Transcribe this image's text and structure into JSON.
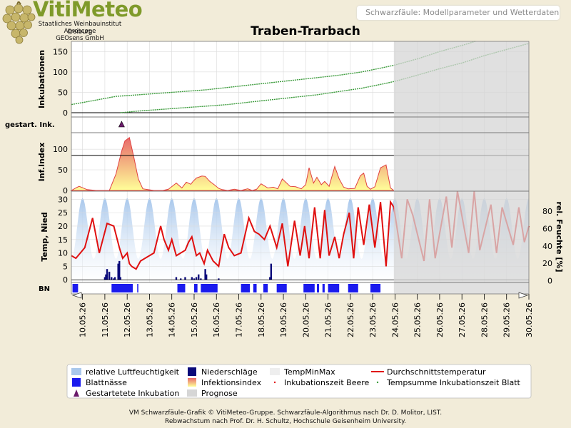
{
  "header": {
    "logo_text": "VitiMeteo",
    "logo_sub": [
      "Staatliches Weinbauinstitut Freiburg",
      "Agroscope",
      "GEOsens GmbH"
    ],
    "page_label": "Schwarzfäule: Modellparameter und Wetterdaten"
  },
  "footer": {
    "line1": "VM Schwarzfäule-Grafik © VitiMeteo-Gruppe. Schwarzfäule-Algorithmus nach Dr. D. Molitor, LIST.",
    "line2": "Rebwachstum nach Prof. Dr. H. Schultz, Hochschule Geisenheim University."
  },
  "colors": {
    "background": "#f2ecd9",
    "incubation_line": "#3a9a3a",
    "temperature": "#e01010",
    "humidity": "#a9c8ec",
    "precipitation": "#0a0a7a",
    "leaf_wetness": "#1a1aee",
    "forecast": "#d6d6d6",
    "infection_top": "#e86a6a",
    "infection_bottom": "#ffff99",
    "start_marker": "#6a1a6a"
  },
  "chart_data": {
    "type": "line",
    "title": "Traben-Trarbach",
    "x_labels": [
      "10.05.26",
      "11.05.26",
      "12.05.26",
      "13.05.26",
      "14.05.26",
      "15.05.26",
      "16.05.26",
      "17.05.26",
      "18.05.26",
      "19.05.26",
      "20.05.26",
      "21.05.26",
      "22.05.26",
      "23.05.26",
      "24.05.26",
      "25.05.26",
      "26.05.26",
      "27.05.26",
      "28.05.26",
      "29.05.26",
      "30.05.26"
    ],
    "x_range": [
      9.5,
      30.0
    ],
    "forecast_start": 23.95,
    "panels": {
      "incubation": {
        "ylabel": "Inkubationen",
        "ylim": [
          0,
          175
        ],
        "yticks": [
          0,
          50,
          100,
          150
        ],
        "threshold": 0,
        "series": [
          {
            "name": "Inkubationszeit Beere",
            "x": [
              9.5,
              10.5,
              11.5,
              12.5,
              13.5,
              14.5,
              15.5,
              16.5,
              17.5,
              18.5,
              19.5,
              20.5,
              21.5,
              22.5,
              23.5,
              24.0,
              25.0,
              26.0,
              27.0,
              27.6
            ],
            "y": [
              20,
              30,
              40,
              44,
              48,
              52,
              56,
              62,
              68,
              74,
              80,
              86,
              92,
              100,
              111,
              117,
              132,
              150,
              165,
              175
            ]
          },
          {
            "name": "Tempsumme Inkubationszeit Blatt",
            "x": [
              11.7,
              12.5,
              13.5,
              14.5,
              15.5,
              16.5,
              17.5,
              18.5,
              19.5,
              20.5,
              21.5,
              22.5,
              23.5,
              24.0,
              25.0,
              26.0,
              27.0,
              28.0,
              29.0,
              30.0
            ],
            "y": [
              0,
              4,
              8,
              12,
              16,
              20,
              26,
              32,
              38,
              44,
              52,
              60,
              71,
              77,
              92,
              108,
              122,
              140,
              155,
              170
            ]
          }
        ]
      },
      "gestart": {
        "ylabel": "gestart. Ink.",
        "series": [
          {
            "name": "Gestartetete Inkubation",
            "x": [
              11.75
            ]
          }
        ]
      },
      "infection": {
        "ylabel": "Inf.Index",
        "ylim": [
          0,
          140
        ],
        "yticks": [
          0,
          50,
          100
        ],
        "threshold": 85,
        "series": [
          {
            "name": "Infektionsindex",
            "x": [
              9.5,
              9.7,
              9.85,
              10.2,
              10.6,
              11.2,
              11.5,
              11.75,
              11.9,
              12.1,
              12.3,
              12.5,
              12.7,
              13.2,
              13.6,
              13.85,
              14.2,
              14.45,
              14.65,
              14.85,
              14.95,
              15.1,
              15.35,
              15.5,
              15.7,
              15.9,
              16.1,
              16.25,
              16.5,
              16.8,
              17.1,
              17.4,
              17.6,
              17.8,
              18.0,
              18.3,
              18.55,
              18.75,
              18.95,
              19.3,
              19.55,
              19.8,
              20.0,
              20.15,
              20.35,
              20.5,
              20.7,
              20.85,
              21.05,
              21.3,
              21.5,
              21.7,
              21.9,
              22.2,
              22.45,
              22.6,
              22.75,
              22.9,
              23.1,
              23.35,
              23.6,
              23.8,
              23.95
            ],
            "y": [
              0,
              6,
              10,
              2,
              0,
              0,
              40,
              95,
              120,
              128,
              80,
              28,
              4,
              0,
              0,
              3,
              18,
              6,
              20,
              15,
              22,
              30,
              35,
              34,
              22,
              14,
              5,
              2,
              0,
              3,
              0,
              4,
              0,
              3,
              16,
              6,
              8,
              4,
              28,
              10,
              9,
              4,
              14,
              55,
              18,
              32,
              14,
              22,
              10,
              58,
              28,
              8,
              4,
              5,
              36,
              42,
              10,
              3,
              9,
              55,
              62,
              6,
              0
            ]
          }
        ]
      },
      "weather": {
        "ylabel": "Temp, Nied",
        "ylabel_right": "rel. Feuchte [%]",
        "ylim": [
          -1,
          33
        ],
        "yticks": [
          0,
          5,
          10,
          15,
          20,
          25,
          30
        ],
        "ylim_right": [
          -2,
          103
        ],
        "yticks_right": [
          0,
          20,
          40,
          60,
          80
        ],
        "temperature": [
          {
            "name": "Durchschnittstemperatur",
            "x": [
              9.5,
              9.7,
              10.1,
              10.45,
              10.75,
              11.1,
              11.4,
              11.65,
              11.8,
              12.0,
              12.1,
              12.2,
              12.4,
              12.6,
              13.2,
              13.5,
              13.65,
              13.85,
              14.0,
              14.2,
              14.4,
              14.6,
              14.75,
              14.9,
              15.1,
              15.25,
              15.45,
              15.6,
              15.85,
              16.1,
              16.35,
              16.55,
              16.8,
              17.1,
              17.45,
              17.7,
              17.9,
              18.15,
              18.4,
              18.7,
              18.95,
              19.2,
              19.5,
              19.75,
              19.95,
              20.15,
              20.4,
              20.65,
              20.85,
              21.05,
              21.3,
              21.5,
              21.7,
              21.95,
              22.15,
              22.35,
              22.6,
              22.85,
              23.1,
              23.35,
              23.6,
              23.8,
              23.95
            ],
            "y": [
              9,
              8,
              12,
              23,
              10,
              21,
              20,
              12,
              8,
              10,
              6,
              5,
              4,
              7,
              10,
              20,
              15,
              11,
              15,
              9,
              10,
              11,
              14,
              16,
              9,
              10,
              6,
              11,
              7,
              5,
              17,
              12,
              9,
              10,
              23,
              18,
              17,
              15,
              20,
              12,
              21,
              5,
              22,
              9,
              20,
              8,
              27,
              8,
              26,
              9,
              16,
              8,
              17,
              25,
              8,
              27,
              13,
              28,
              12,
              29,
              5,
              29,
              27
            ],
            "forecast_x": [
              23.95,
              24.3,
              24.55,
              24.8,
              25.3,
              25.55,
              25.8,
              26.3,
              26.55,
              26.8,
              27.3,
              27.55,
              27.8,
              28.3,
              28.55,
              28.8,
              29.3,
              29.55,
              29.8,
              30.0
            ],
            "forecast_y": [
              27,
              8,
              30,
              24,
              7,
              30,
              8,
              31,
              12,
              33,
              10,
              33,
              11,
              28,
              10,
              27,
              13,
              27,
              14,
              20
            ]
          }
        ],
        "humidity": {
          "name": "relative Luftfeuchtigkeit",
          "period_days": 1,
          "range_percent": [
            25,
            95
          ]
        },
        "precipitation": {
          "name": "Niederschläge",
          "x": [
            11.0,
            11.05,
            11.1,
            11.2,
            11.3,
            11.4,
            11.45,
            11.6,
            11.65,
            11.7,
            14.2,
            14.4,
            14.6,
            14.9,
            15.0,
            15.1,
            15.2,
            15.3,
            15.5,
            15.55,
            16.1,
            18.4,
            18.45
          ],
          "y": [
            1,
            2,
            4,
            3,
            1,
            0.5,
            1,
            6,
            7,
            1,
            1,
            0.5,
            1,
            1,
            0.5,
            1,
            2,
            0.5,
            4,
            2,
            0.5,
            1,
            6
          ]
        },
        "tempminmax": {
          "name": "TempMinMax"
        }
      },
      "bn": {
        "ylabel": "BN",
        "series": [
          {
            "name": "Blattnässe",
            "intervals": [
              [
                9.55,
                9.8
              ],
              [
                11.3,
                12.25
              ],
              [
                12.45,
                12.5
              ],
              [
                14.25,
                14.6
              ],
              [
                15.0,
                15.15
              ],
              [
                15.3,
                16.05
              ],
              [
                17.1,
                17.5
              ],
              [
                17.65,
                17.8
              ],
              [
                18.1,
                18.3
              ],
              [
                18.7,
                19.15
              ],
              [
                19.9,
                20.4
              ],
              [
                20.5,
                20.6
              ],
              [
                20.75,
                20.85
              ],
              [
                21.0,
                21.5
              ],
              [
                21.9,
                22.35
              ],
              [
                22.9,
                23.35
              ]
            ]
          }
        ]
      }
    },
    "legend": {
      "placement": "bottom",
      "items": [
        {
          "label": "relative Luftfeuchtigkeit",
          "symbol": "humidity"
        },
        {
          "label": "Niederschläge",
          "symbol": "precip"
        },
        {
          "label": "TempMinMax",
          "symbol": "tempminmax"
        },
        {
          "label": "Durchschnittstemperatur",
          "symbol": "line"
        },
        {
          "label": "Blattnässe",
          "symbol": "bn"
        },
        {
          "label": "Infektionsindex",
          "symbol": "inf"
        },
        {
          "label": "Inkubationszeit Beere",
          "symbol": "dot-red"
        },
        {
          "label": "Tempsumme Inkubationszeit Blatt",
          "symbol": "dot-green"
        },
        {
          "label": "Gestartetete Inkubation",
          "symbol": "triangle"
        },
        {
          "label": "Prognose",
          "symbol": "forecast"
        }
      ]
    }
  }
}
